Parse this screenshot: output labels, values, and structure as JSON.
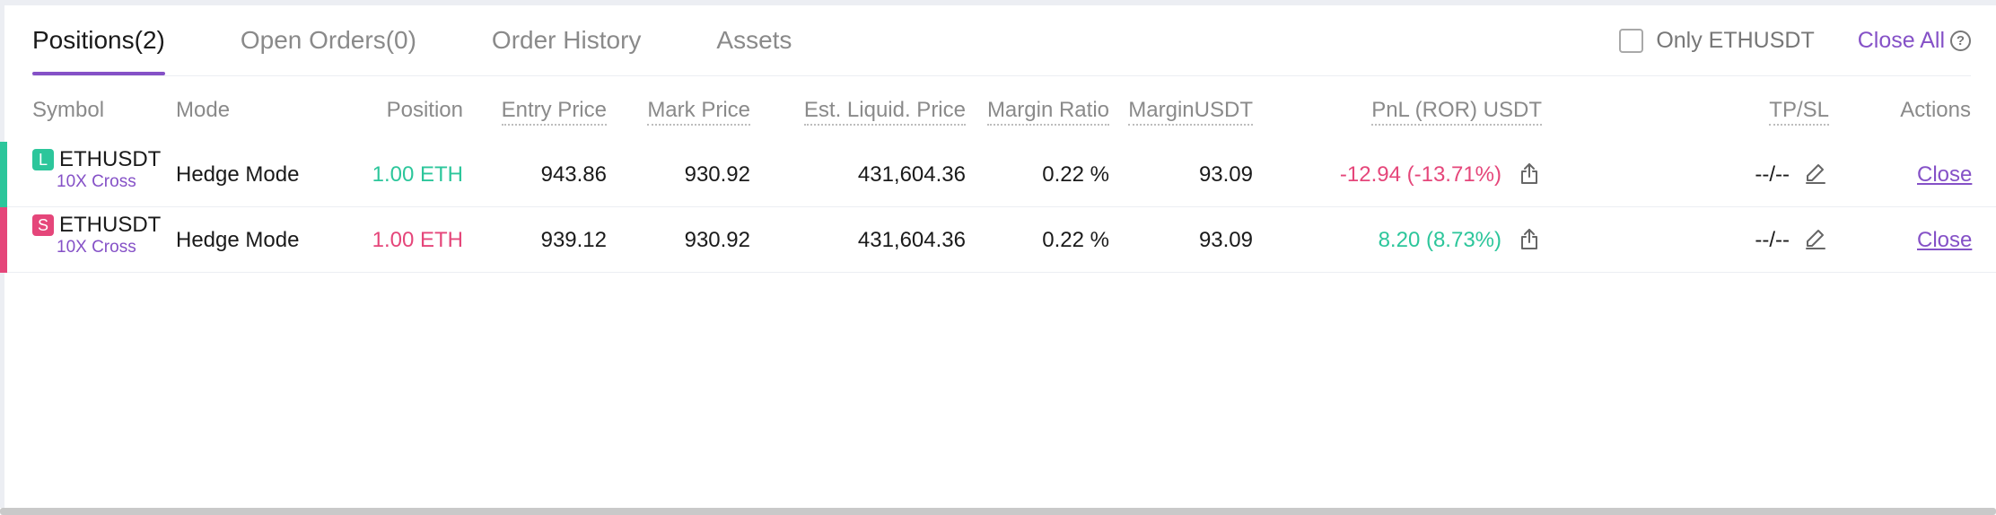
{
  "tabs": [
    {
      "label": "Positions(2)",
      "active": true
    },
    {
      "label": "Open Orders(0)",
      "active": false
    },
    {
      "label": "Order History",
      "active": false
    },
    {
      "label": "Assets",
      "active": false
    }
  ],
  "controls": {
    "only_label": "Only ETHUSDT",
    "only_checked": false,
    "close_all_label": "Close All",
    "help_glyph": "?"
  },
  "columns": {
    "symbol": "Symbol",
    "mode": "Mode",
    "position": "Position",
    "entry_price": "Entry Price",
    "mark_price": "Mark Price",
    "liq_price": "Est. Liquid. Price",
    "margin_ratio": "Margin Ratio",
    "margin_usdt": "MarginUSDT",
    "pnl": "PnL (ROR) USDT",
    "tpsl": "TP/SL",
    "actions": "Actions"
  },
  "rows": [
    {
      "side": "L",
      "symbol": "ETHUSDT",
      "leverage": "10X Cross",
      "mode": "Hedge Mode",
      "position": "1.00 ETH",
      "entry_price": "943.86",
      "mark_price": "930.92",
      "liq_price": "431,604.36",
      "margin_ratio": "0.22 %",
      "margin_usdt": "93.09",
      "pnl": "-12.94 (-13.71%)",
      "tpsl": "--/--",
      "action": "Close"
    },
    {
      "side": "S",
      "symbol": "ETHUSDT",
      "leverage": "10X Cross",
      "mode": "Hedge Mode",
      "position": "1.00 ETH",
      "entry_price": "939.12",
      "mark_price": "930.92",
      "liq_price": "431,604.36",
      "margin_ratio": "0.22 %",
      "margin_usdt": "93.09",
      "pnl": "8.20 (8.73%)",
      "tpsl": "--/--",
      "action": "Close"
    }
  ],
  "colors": {
    "accent": "#8551c7",
    "long": "#2cc69b",
    "short": "#e5467a"
  },
  "icons": {
    "share": "share-icon",
    "edit": "edit-icon",
    "help": "help-icon"
  }
}
